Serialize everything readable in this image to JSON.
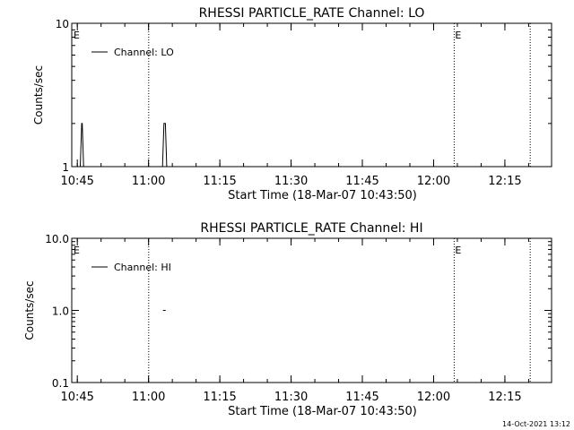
{
  "footer_timestamp": "14-Oct-2021 13:12",
  "chart_data": [
    {
      "type": "line",
      "title": "RHESSI PARTICLE_RATE Channel: LO",
      "xlabel": "Start Time (18-Mar-07 10:43:50)",
      "ylabel": "Counts/sec",
      "yscale": "log",
      "ylim": [
        1,
        10
      ],
      "ytick_labels": [
        "1",
        "10"
      ],
      "ytick_values": [
        1,
        10
      ],
      "xlim_minutes_after_start": [
        0,
        101
      ],
      "xtick_labels": [
        "10:45",
        "11:00",
        "11:15",
        "11:30",
        "11:45",
        "12:00",
        "12:15"
      ],
      "xtick_minutes_after_start": [
        1.17,
        16.17,
        31.17,
        46.17,
        61.17,
        76.17,
        91.17
      ],
      "legend": {
        "position": "top-left",
        "entries": [
          "Channel: LO"
        ]
      },
      "markers": [
        {
          "label": "E",
          "minutes_after_start": 0.2,
          "style": "text"
        },
        {
          "label": "",
          "minutes_after_start": 16.2,
          "style": "dotted"
        },
        {
          "label": "E",
          "minutes_after_start": 80.5,
          "style": "dotted"
        },
        {
          "label": "",
          "minutes_after_start": 96.5,
          "style": "dotted"
        }
      ],
      "series": [
        {
          "name": "Channel: LO",
          "segments": [
            {
              "x": [
                1.8,
                2.1,
                2.2,
                2.5
              ],
              "y": [
                1,
                2,
                2,
                1
              ]
            },
            {
              "x": [
                19.1,
                19.4,
                19.7,
                20.0
              ],
              "y": [
                1,
                2,
                2,
                1
              ]
            }
          ]
        }
      ]
    },
    {
      "type": "line",
      "title": "RHESSI PARTICLE_RATE Channel: HI",
      "xlabel": "Start Time (18-Mar-07 10:43:50)",
      "ylabel": "Counts/sec",
      "yscale": "log",
      "ylim": [
        0.1,
        10
      ],
      "ytick_labels": [
        "0.1",
        "1.0",
        "10.0"
      ],
      "ytick_values": [
        0.1,
        1,
        10
      ],
      "xlim_minutes_after_start": [
        0,
        101
      ],
      "xtick_labels": [
        "10:45",
        "11:00",
        "11:15",
        "11:30",
        "11:45",
        "12:00",
        "12:15"
      ],
      "xtick_minutes_after_start": [
        1.17,
        16.17,
        31.17,
        46.17,
        61.17,
        76.17,
        91.17
      ],
      "legend": {
        "position": "top-left",
        "entries": [
          "Channel: HI"
        ]
      },
      "markers": [
        {
          "label": "E",
          "minutes_after_start": 0.2,
          "style": "text"
        },
        {
          "label": "",
          "minutes_after_start": 16.2,
          "style": "dotted"
        },
        {
          "label": "E",
          "minutes_after_start": 80.5,
          "style": "dotted"
        },
        {
          "label": "",
          "minutes_after_start": 96.5,
          "style": "dotted"
        }
      ],
      "series": [
        {
          "name": "Channel: HI",
          "segments": [
            {
              "x": [
                19.2,
                20.0
              ],
              "y": [
                1,
                1
              ],
              "dashed": true
            }
          ]
        }
      ]
    }
  ]
}
